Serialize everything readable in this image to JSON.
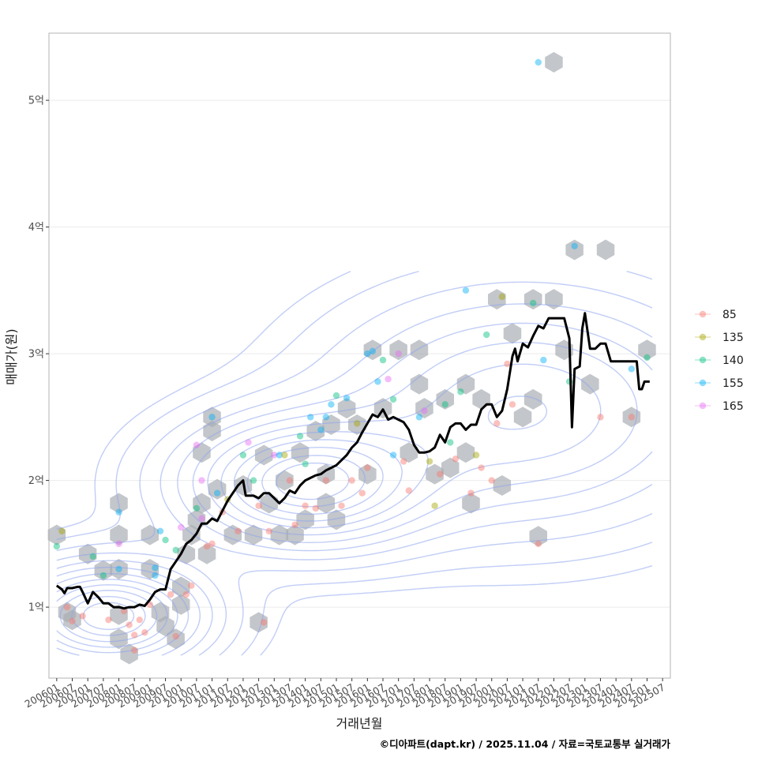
{
  "chart_data": {
    "type": "scatter",
    "title": "",
    "xlabel": "거래년월",
    "ylabel": "매매가(원)",
    "caption": "©디아파트(dapt.kr) / 2025.11.04 / 자료=국토교통부 실거래가",
    "x_ticks": [
      "200601",
      "200607",
      "200701",
      "200707",
      "200801",
      "200807",
      "200901",
      "200907",
      "201001",
      "201007",
      "201101",
      "201107",
      "201201",
      "201207",
      "201301",
      "201307",
      "201401",
      "201407",
      "201501",
      "201507",
      "201601",
      "201607",
      "201701",
      "201707",
      "201801",
      "201807",
      "201901",
      "201907",
      "202001",
      "202007",
      "202101",
      "202107",
      "202201",
      "202207",
      "202301",
      "202307",
      "202401",
      "202407",
      "202501",
      "202507"
    ],
    "y_ticks": [
      {
        "value": 1,
        "label": "1억"
      },
      {
        "value": 2,
        "label": "2억"
      },
      {
        "value": 3,
        "label": "3억"
      },
      {
        "value": 4,
        "label": "4억"
      },
      {
        "value": 5,
        "label": "5억"
      }
    ],
    "xlim": [
      -3,
      237
    ],
    "ylim": [
      0.44,
      5.53
    ],
    "legend": {
      "position": "right",
      "entries": [
        {
          "name": "85",
          "color": "#F8766D"
        },
        {
          "name": "135",
          "color": "#A3A500"
        },
        {
          "name": "140",
          "color": "#00BF7D"
        },
        {
          "name": "155",
          "color": "#00B0F6"
        },
        {
          "name": "165",
          "color": "#E76BF3"
        }
      ]
    },
    "trend_line": [
      [
        0,
        1.17
      ],
      [
        2,
        1.14
      ],
      [
        3,
        1.11
      ],
      [
        4,
        1.15
      ],
      [
        6,
        1.15
      ],
      [
        8,
        1.16
      ],
      [
        9,
        1.16
      ],
      [
        10,
        1.12
      ],
      [
        12,
        1.03
      ],
      [
        14,
        1.12
      ],
      [
        16,
        1.08
      ],
      [
        18,
        1.03
      ],
      [
        20,
        1.03
      ],
      [
        22,
        1.0
      ],
      [
        24,
        1.0
      ],
      [
        26,
        0.99
      ],
      [
        28,
        1.0
      ],
      [
        30,
        1.0
      ],
      [
        32,
        1.02
      ],
      [
        34,
        1.01
      ],
      [
        36,
        1.06
      ],
      [
        38,
        1.12
      ],
      [
        40,
        1.14
      ],
      [
        42,
        1.14
      ],
      [
        44,
        1.3
      ],
      [
        46,
        1.36
      ],
      [
        48,
        1.42
      ],
      [
        50,
        1.5
      ],
      [
        52,
        1.53
      ],
      [
        54,
        1.58
      ],
      [
        56,
        1.66
      ],
      [
        58,
        1.66
      ],
      [
        60,
        1.7
      ],
      [
        62,
        1.68
      ],
      [
        64,
        1.76
      ],
      [
        66,
        1.84
      ],
      [
        68,
        1.9
      ],
      [
        70,
        1.96
      ],
      [
        72,
        2.0
      ],
      [
        73,
        1.88
      ],
      [
        76,
        1.88
      ],
      [
        78,
        1.86
      ],
      [
        80,
        1.9
      ],
      [
        82,
        1.9
      ],
      [
        84,
        1.86
      ],
      [
        86,
        1.82
      ],
      [
        88,
        1.86
      ],
      [
        90,
        1.92
      ],
      [
        92,
        1.9
      ],
      [
        94,
        1.96
      ],
      [
        96,
        2.0
      ],
      [
        98,
        2.02
      ],
      [
        100,
        2.04
      ],
      [
        102,
        2.05
      ],
      [
        104,
        2.08
      ],
      [
        106,
        2.1
      ],
      [
        108,
        2.12
      ],
      [
        110,
        2.16
      ],
      [
        112,
        2.2
      ],
      [
        114,
        2.26
      ],
      [
        116,
        2.3
      ],
      [
        118,
        2.38
      ],
      [
        120,
        2.45
      ],
      [
        122,
        2.52
      ],
      [
        124,
        2.5
      ],
      [
        126,
        2.56
      ],
      [
        128,
        2.48
      ],
      [
        130,
        2.5
      ],
      [
        132,
        2.48
      ],
      [
        134,
        2.46
      ],
      [
        136,
        2.4
      ],
      [
        138,
        2.28
      ],
      [
        140,
        2.22
      ],
      [
        142,
        2.22
      ],
      [
        144,
        2.23
      ],
      [
        146,
        2.26
      ],
      [
        148,
        2.36
      ],
      [
        150,
        2.3
      ],
      [
        152,
        2.42
      ],
      [
        154,
        2.45
      ],
      [
        156,
        2.45
      ],
      [
        158,
        2.4
      ],
      [
        160,
        2.44
      ],
      [
        162,
        2.44
      ],
      [
        164,
        2.56
      ],
      [
        166,
        2.6
      ],
      [
        168,
        2.6
      ],
      [
        170,
        2.5
      ],
      [
        172,
        2.55
      ],
      [
        174,
        2.72
      ],
      [
        176,
        2.98
      ],
      [
        177,
        3.04
      ],
      [
        178,
        2.94
      ],
      [
        180,
        3.08
      ],
      [
        182,
        3.05
      ],
      [
        184,
        3.14
      ],
      [
        186,
        3.22
      ],
      [
        188,
        3.2
      ],
      [
        190,
        3.28
      ],
      [
        192,
        3.28
      ],
      [
        194,
        3.28
      ],
      [
        196,
        3.28
      ],
      [
        198,
        3.12
      ],
      [
        199,
        2.42
      ],
      [
        200,
        2.88
      ],
      [
        202,
        2.9
      ],
      [
        203,
        3.2
      ],
      [
        204,
        3.32
      ],
      [
        206,
        3.04
      ],
      [
        208,
        3.04
      ],
      [
        210,
        3.08
      ],
      [
        212,
        3.08
      ],
      [
        214,
        2.94
      ],
      [
        216,
        2.94
      ],
      [
        218,
        2.94
      ],
      [
        220,
        2.94
      ],
      [
        222,
        2.94
      ],
      [
        224,
        2.94
      ],
      [
        225,
        2.72
      ],
      [
        226,
        2.72
      ],
      [
        227,
        2.78
      ],
      [
        229,
        2.78
      ]
    ],
    "hexbins": [
      [
        0,
        1.57
      ],
      [
        4,
        0.96
      ],
      [
        6,
        0.9
      ],
      [
        12,
        1.42
      ],
      [
        18,
        1.29
      ],
      [
        24,
        1.82
      ],
      [
        24,
        1.57
      ],
      [
        24,
        1.3
      ],
      [
        24,
        0.94
      ],
      [
        24,
        0.75
      ],
      [
        28,
        0.63
      ],
      [
        36,
        1.57
      ],
      [
        36,
        1.3
      ],
      [
        40,
        0.96
      ],
      [
        42,
        0.85
      ],
      [
        46,
        0.75
      ],
      [
        48,
        1.02
      ],
      [
        48,
        1.16
      ],
      [
        50,
        1.42
      ],
      [
        52,
        1.57
      ],
      [
        54,
        1.69
      ],
      [
        56,
        2.22
      ],
      [
        56,
        1.82
      ],
      [
        58,
        1.42
      ],
      [
        60,
        2.39
      ],
      [
        60,
        2.5
      ],
      [
        62,
        1.93
      ],
      [
        68,
        1.57
      ],
      [
        72,
        1.96
      ],
      [
        76,
        1.57
      ],
      [
        78,
        0.88
      ],
      [
        80,
        2.2
      ],
      [
        82,
        1.82
      ],
      [
        86,
        1.57
      ],
      [
        88,
        2.0
      ],
      [
        92,
        1.57
      ],
      [
        94,
        2.22
      ],
      [
        96,
        1.69
      ],
      [
        100,
        2.39
      ],
      [
        104,
        1.82
      ],
      [
        104,
        2.05
      ],
      [
        106,
        2.44
      ],
      [
        108,
        1.69
      ],
      [
        112,
        2.57
      ],
      [
        116,
        2.44
      ],
      [
        120,
        2.05
      ],
      [
        122,
        3.03
      ],
      [
        126,
        2.57
      ],
      [
        132,
        3.03
      ],
      [
        136,
        2.22
      ],
      [
        140,
        3.03
      ],
      [
        140,
        2.76
      ],
      [
        142,
        2.57
      ],
      [
        146,
        2.05
      ],
      [
        150,
        2.64
      ],
      [
        152,
        2.1
      ],
      [
        158,
        2.76
      ],
      [
        158,
        2.22
      ],
      [
        160,
        1.82
      ],
      [
        164,
        2.64
      ],
      [
        170,
        3.43
      ],
      [
        172,
        1.96
      ],
      [
        176,
        3.16
      ],
      [
        180,
        2.5
      ],
      [
        184,
        3.43
      ],
      [
        184,
        2.64
      ],
      [
        186,
        1.56
      ],
      [
        192,
        3.43
      ],
      [
        192,
        5.3
      ],
      [
        196,
        3.03
      ],
      [
        200,
        3.82
      ],
      [
        206,
        2.76
      ],
      [
        212,
        3.82
      ],
      [
        222,
        2.5
      ],
      [
        228,
        3.03
      ]
    ],
    "points": [
      {
        "x": 0,
        "y": 1.48,
        "s": "140"
      },
      {
        "x": 2,
        "y": 1.6,
        "s": "135"
      },
      {
        "x": 4,
        "y": 1.0,
        "s": "85"
      },
      {
        "x": 6,
        "y": 0.89,
        "s": "85"
      },
      {
        "x": 10,
        "y": 0.93,
        "s": "85"
      },
      {
        "x": 14,
        "y": 1.4,
        "s": "140"
      },
      {
        "x": 18,
        "y": 1.25,
        "s": "140"
      },
      {
        "x": 20,
        "y": 0.9,
        "s": "85"
      },
      {
        "x": 24,
        "y": 1.5,
        "s": "165"
      },
      {
        "x": 24,
        "y": 1.3,
        "s": "155"
      },
      {
        "x": 24,
        "y": 1.75,
        "s": "155"
      },
      {
        "x": 26,
        "y": 0.97,
        "s": "85"
      },
      {
        "x": 28,
        "y": 0.86,
        "s": "85"
      },
      {
        "x": 30,
        "y": 0.78,
        "s": "85"
      },
      {
        "x": 30,
        "y": 0.66,
        "s": "85"
      },
      {
        "x": 32,
        "y": 0.9,
        "s": "85"
      },
      {
        "x": 34,
        "y": 0.8,
        "s": "85"
      },
      {
        "x": 36,
        "y": 1.02,
        "s": "85"
      },
      {
        "x": 38,
        "y": 1.31,
        "s": "155"
      },
      {
        "x": 38,
        "y": 1.25,
        "s": "155"
      },
      {
        "x": 40,
        "y": 1.6,
        "s": "155"
      },
      {
        "x": 42,
        "y": 1.53,
        "s": "140"
      },
      {
        "x": 44,
        "y": 1.1,
        "s": "85"
      },
      {
        "x": 46,
        "y": 0.77,
        "s": "85"
      },
      {
        "x": 46,
        "y": 1.45,
        "s": "140"
      },
      {
        "x": 48,
        "y": 1.63,
        "s": "165"
      },
      {
        "x": 50,
        "y": 1.1,
        "s": "85"
      },
      {
        "x": 52,
        "y": 1.17,
        "s": "85"
      },
      {
        "x": 54,
        "y": 2.28,
        "s": "165"
      },
      {
        "x": 54,
        "y": 1.78,
        "s": "140"
      },
      {
        "x": 56,
        "y": 1.7,
        "s": "165"
      },
      {
        "x": 56,
        "y": 2.0,
        "s": "165"
      },
      {
        "x": 58,
        "y": 1.48,
        "s": "85"
      },
      {
        "x": 60,
        "y": 2.5,
        "s": "155"
      },
      {
        "x": 60,
        "y": 1.5,
        "s": "85"
      },
      {
        "x": 62,
        "y": 1.9,
        "s": "155"
      },
      {
        "x": 64,
        "y": 1.75,
        "s": "85"
      },
      {
        "x": 66,
        "y": 1.85,
        "s": "135"
      },
      {
        "x": 70,
        "y": 1.6,
        "s": "85"
      },
      {
        "x": 72,
        "y": 2.2,
        "s": "140"
      },
      {
        "x": 74,
        "y": 2.3,
        "s": "165"
      },
      {
        "x": 76,
        "y": 2.0,
        "s": "140"
      },
      {
        "x": 78,
        "y": 1.8,
        "s": "85"
      },
      {
        "x": 80,
        "y": 0.88,
        "s": "85"
      },
      {
        "x": 82,
        "y": 1.6,
        "s": "85"
      },
      {
        "x": 84,
        "y": 2.2,
        "s": "165"
      },
      {
        "x": 86,
        "y": 2.2,
        "s": "155"
      },
      {
        "x": 88,
        "y": 2.2,
        "s": "135"
      },
      {
        "x": 90,
        "y": 2.0,
        "s": "85"
      },
      {
        "x": 92,
        "y": 1.65,
        "s": "85"
      },
      {
        "x": 94,
        "y": 2.35,
        "s": "140"
      },
      {
        "x": 96,
        "y": 2.13,
        "s": "140"
      },
      {
        "x": 96,
        "y": 1.8,
        "s": "85"
      },
      {
        "x": 98,
        "y": 2.5,
        "s": "155"
      },
      {
        "x": 100,
        "y": 1.78,
        "s": "85"
      },
      {
        "x": 102,
        "y": 2.4,
        "s": "155"
      },
      {
        "x": 104,
        "y": 2.0,
        "s": "85"
      },
      {
        "x": 104,
        "y": 2.5,
        "s": "155"
      },
      {
        "x": 106,
        "y": 2.6,
        "s": "155"
      },
      {
        "x": 108,
        "y": 2.67,
        "s": "140"
      },
      {
        "x": 110,
        "y": 1.8,
        "s": "85"
      },
      {
        "x": 112,
        "y": 2.65,
        "s": "155"
      },
      {
        "x": 114,
        "y": 2.0,
        "s": "85"
      },
      {
        "x": 116,
        "y": 2.45,
        "s": "135"
      },
      {
        "x": 118,
        "y": 1.9,
        "s": "85"
      },
      {
        "x": 120,
        "y": 3.0,
        "s": "155"
      },
      {
        "x": 120,
        "y": 2.1,
        "s": "85"
      },
      {
        "x": 122,
        "y": 3.02,
        "s": "155"
      },
      {
        "x": 124,
        "y": 2.78,
        "s": "155"
      },
      {
        "x": 126,
        "y": 2.95,
        "s": "140"
      },
      {
        "x": 128,
        "y": 2.8,
        "s": "165"
      },
      {
        "x": 130,
        "y": 2.64,
        "s": "140"
      },
      {
        "x": 130,
        "y": 2.2,
        "s": "155"
      },
      {
        "x": 132,
        "y": 3.0,
        "s": "165"
      },
      {
        "x": 134,
        "y": 2.15,
        "s": "85"
      },
      {
        "x": 136,
        "y": 1.92,
        "s": "85"
      },
      {
        "x": 140,
        "y": 2.5,
        "s": "155"
      },
      {
        "x": 142,
        "y": 2.55,
        "s": "165"
      },
      {
        "x": 144,
        "y": 2.15,
        "s": "135"
      },
      {
        "x": 146,
        "y": 1.8,
        "s": "135"
      },
      {
        "x": 148,
        "y": 2.05,
        "s": "85"
      },
      {
        "x": 150,
        "y": 2.6,
        "s": "140"
      },
      {
        "x": 152,
        "y": 2.3,
        "s": "140"
      },
      {
        "x": 154,
        "y": 2.17,
        "s": "85"
      },
      {
        "x": 156,
        "y": 2.7,
        "s": "140"
      },
      {
        "x": 158,
        "y": 3.5,
        "s": "155"
      },
      {
        "x": 160,
        "y": 1.9,
        "s": "85"
      },
      {
        "x": 162,
        "y": 2.2,
        "s": "135"
      },
      {
        "x": 164,
        "y": 2.1,
        "s": "85"
      },
      {
        "x": 166,
        "y": 3.15,
        "s": "140"
      },
      {
        "x": 168,
        "y": 2.0,
        "s": "85"
      },
      {
        "x": 170,
        "y": 2.45,
        "s": "85"
      },
      {
        "x": 172,
        "y": 3.45,
        "s": "135"
      },
      {
        "x": 174,
        "y": 2.92,
        "s": "85"
      },
      {
        "x": 176,
        "y": 2.6,
        "s": "85"
      },
      {
        "x": 184,
        "y": 3.4,
        "s": "140"
      },
      {
        "x": 186,
        "y": 1.5,
        "s": "85"
      },
      {
        "x": 188,
        "y": 2.95,
        "s": "155"
      },
      {
        "x": 198,
        "y": 2.78,
        "s": "140"
      },
      {
        "x": 200,
        "y": 3.85,
        "s": "155"
      },
      {
        "x": 210,
        "y": 2.5,
        "s": "85"
      },
      {
        "x": 222,
        "y": 2.5,
        "s": "85"
      },
      {
        "x": 222,
        "y": 2.88,
        "s": "155"
      },
      {
        "x": 228,
        "y": 2.97,
        "s": "140"
      },
      {
        "x": 186,
        "y": 5.3,
        "s": "155"
      }
    ],
    "density_centers": [
      {
        "x": 20,
        "y": 0.93,
        "sx": 24,
        "sy": 0.26,
        "w": 1.0
      },
      {
        "x": 96,
        "y": 1.98,
        "sx": 30,
        "sy": 0.32,
        "w": 0.95
      },
      {
        "x": 180,
        "y": 2.55,
        "sx": 45,
        "sy": 0.55,
        "w": 0.55
      }
    ]
  }
}
